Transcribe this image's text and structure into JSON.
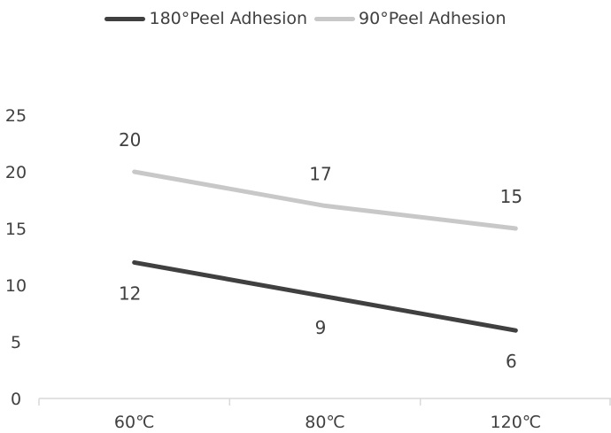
{
  "chart_data": {
    "type": "line",
    "categories": [
      "60℃",
      "80℃",
      "120℃"
    ],
    "series": [
      {
        "name": "180°Peel Adhesion",
        "values": [
          12,
          9,
          6
        ],
        "color": "#404040",
        "label_position": "below"
      },
      {
        "name": "90°Peel Adhesion",
        "values": [
          20,
          17,
          15
        ],
        "color": "#c8c8c8",
        "label_position": "above"
      }
    ],
    "ylim": [
      0,
      25
    ],
    "yticks": [
      "0",
      "5",
      "10",
      "15",
      "20",
      "25"
    ],
    "grid": false,
    "legend": "top-center"
  }
}
